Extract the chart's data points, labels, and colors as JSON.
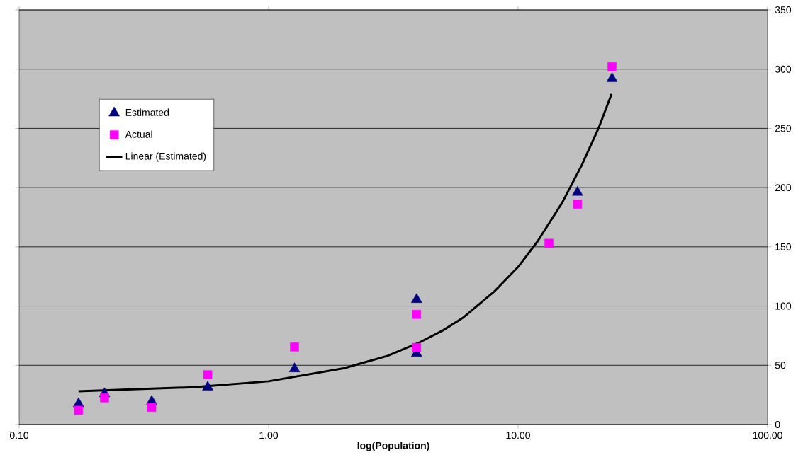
{
  "chart_data": {
    "type": "scatter",
    "xlabel": "log(Population)",
    "log": "x",
    "grid": "y",
    "legend": "top left",
    "xlim": [
      0.1,
      100
    ],
    "ylim": [
      0,
      350
    ],
    "xticks": [
      {
        "value": 0.1,
        "label": "0.10"
      },
      {
        "value": 1,
        "label": "1.00"
      },
      {
        "value": 10,
        "label": "10.00"
      },
      {
        "value": 100,
        "label": "100.00"
      }
    ],
    "yticks": [
      0,
      50,
      100,
      150,
      200,
      250,
      300,
      350
    ],
    "series": [
      {
        "name": "Estimated",
        "color": "#000080",
        "marker": "triangle",
        "x": [
          0.173,
          0.22,
          0.34,
          0.57,
          1.27,
          3.92,
          3.92,
          13.3,
          17.3,
          23.8
        ],
        "values": [
          17.5,
          26,
          19.5,
          31.5,
          47,
          105.5,
          60,
          null,
          196,
          292
        ]
      },
      {
        "name": "Actual",
        "color": "#ff00ff",
        "marker": "square",
        "x": [
          0.173,
          0.22,
          0.34,
          0.57,
          1.27,
          3.92,
          3.92,
          13.3,
          17.3,
          23.8
        ],
        "values": [
          12,
          22.5,
          14.5,
          42,
          65.5,
          93,
          65,
          153,
          186,
          302
        ]
      },
      {
        "name": "Linear (Estimated)",
        "type": "line",
        "color": "#000000",
        "marker": "none",
        "line_style": "solid",
        "x": [
          0.173,
          0.5,
          1,
          2,
          3,
          4,
          5,
          6,
          8,
          10,
          12,
          15,
          18,
          21,
          23.7
        ],
        "values": [
          28,
          31.5,
          36.5,
          47.5,
          58,
          69,
          79.5,
          90,
          112,
          133,
          155,
          187,
          219,
          250,
          279
        ]
      }
    ]
  }
}
